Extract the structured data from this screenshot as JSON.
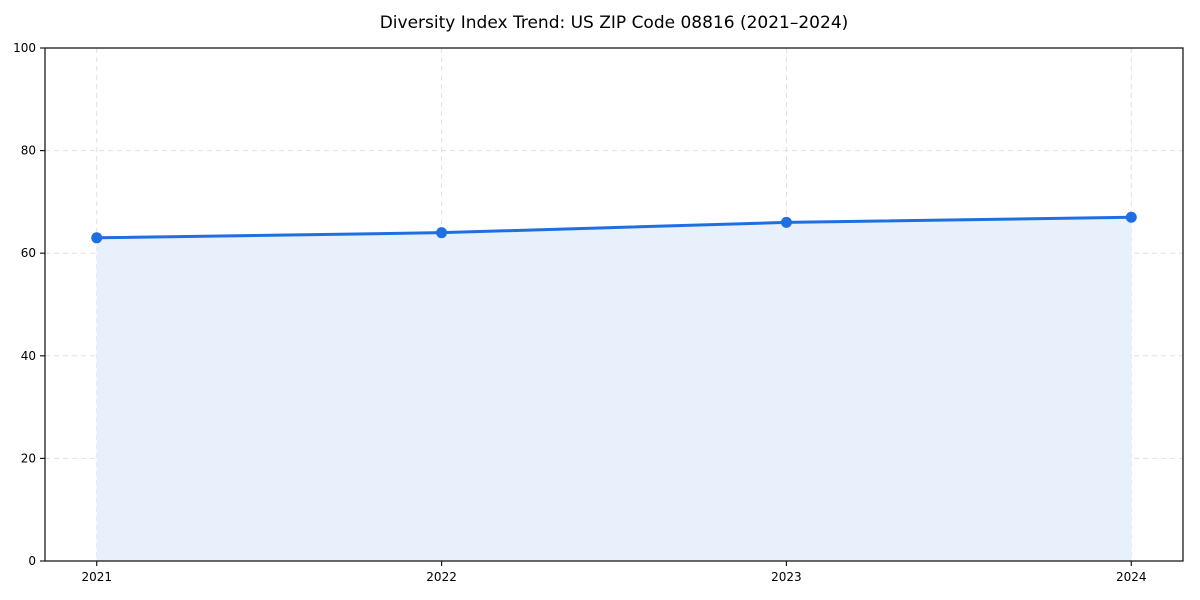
{
  "chart_data": {
    "type": "area",
    "title": "Diversity Index Trend: US ZIP Code 08816 (2021–2024)",
    "series_name": "Diversity Index",
    "x": [
      2021,
      2022,
      2023,
      2024
    ],
    "values": [
      63,
      64,
      66,
      67
    ],
    "xlabel": "",
    "ylabel": "",
    "ylim": [
      0,
      100
    ],
    "yticks": [
      0,
      20,
      40,
      60,
      80,
      100
    ],
    "xticks": [
      2021,
      2022,
      2023,
      2024
    ],
    "grid": true,
    "grid_style": "dashed",
    "legend": false,
    "colors": {
      "line": "#1f6fe0",
      "marker": "#1f6fe0",
      "area_fill": "#e8f0fc",
      "grid": "#e0e0e0",
      "axis": "#1a1a1a",
      "text": "#000000",
      "background": "#ffffff"
    }
  }
}
